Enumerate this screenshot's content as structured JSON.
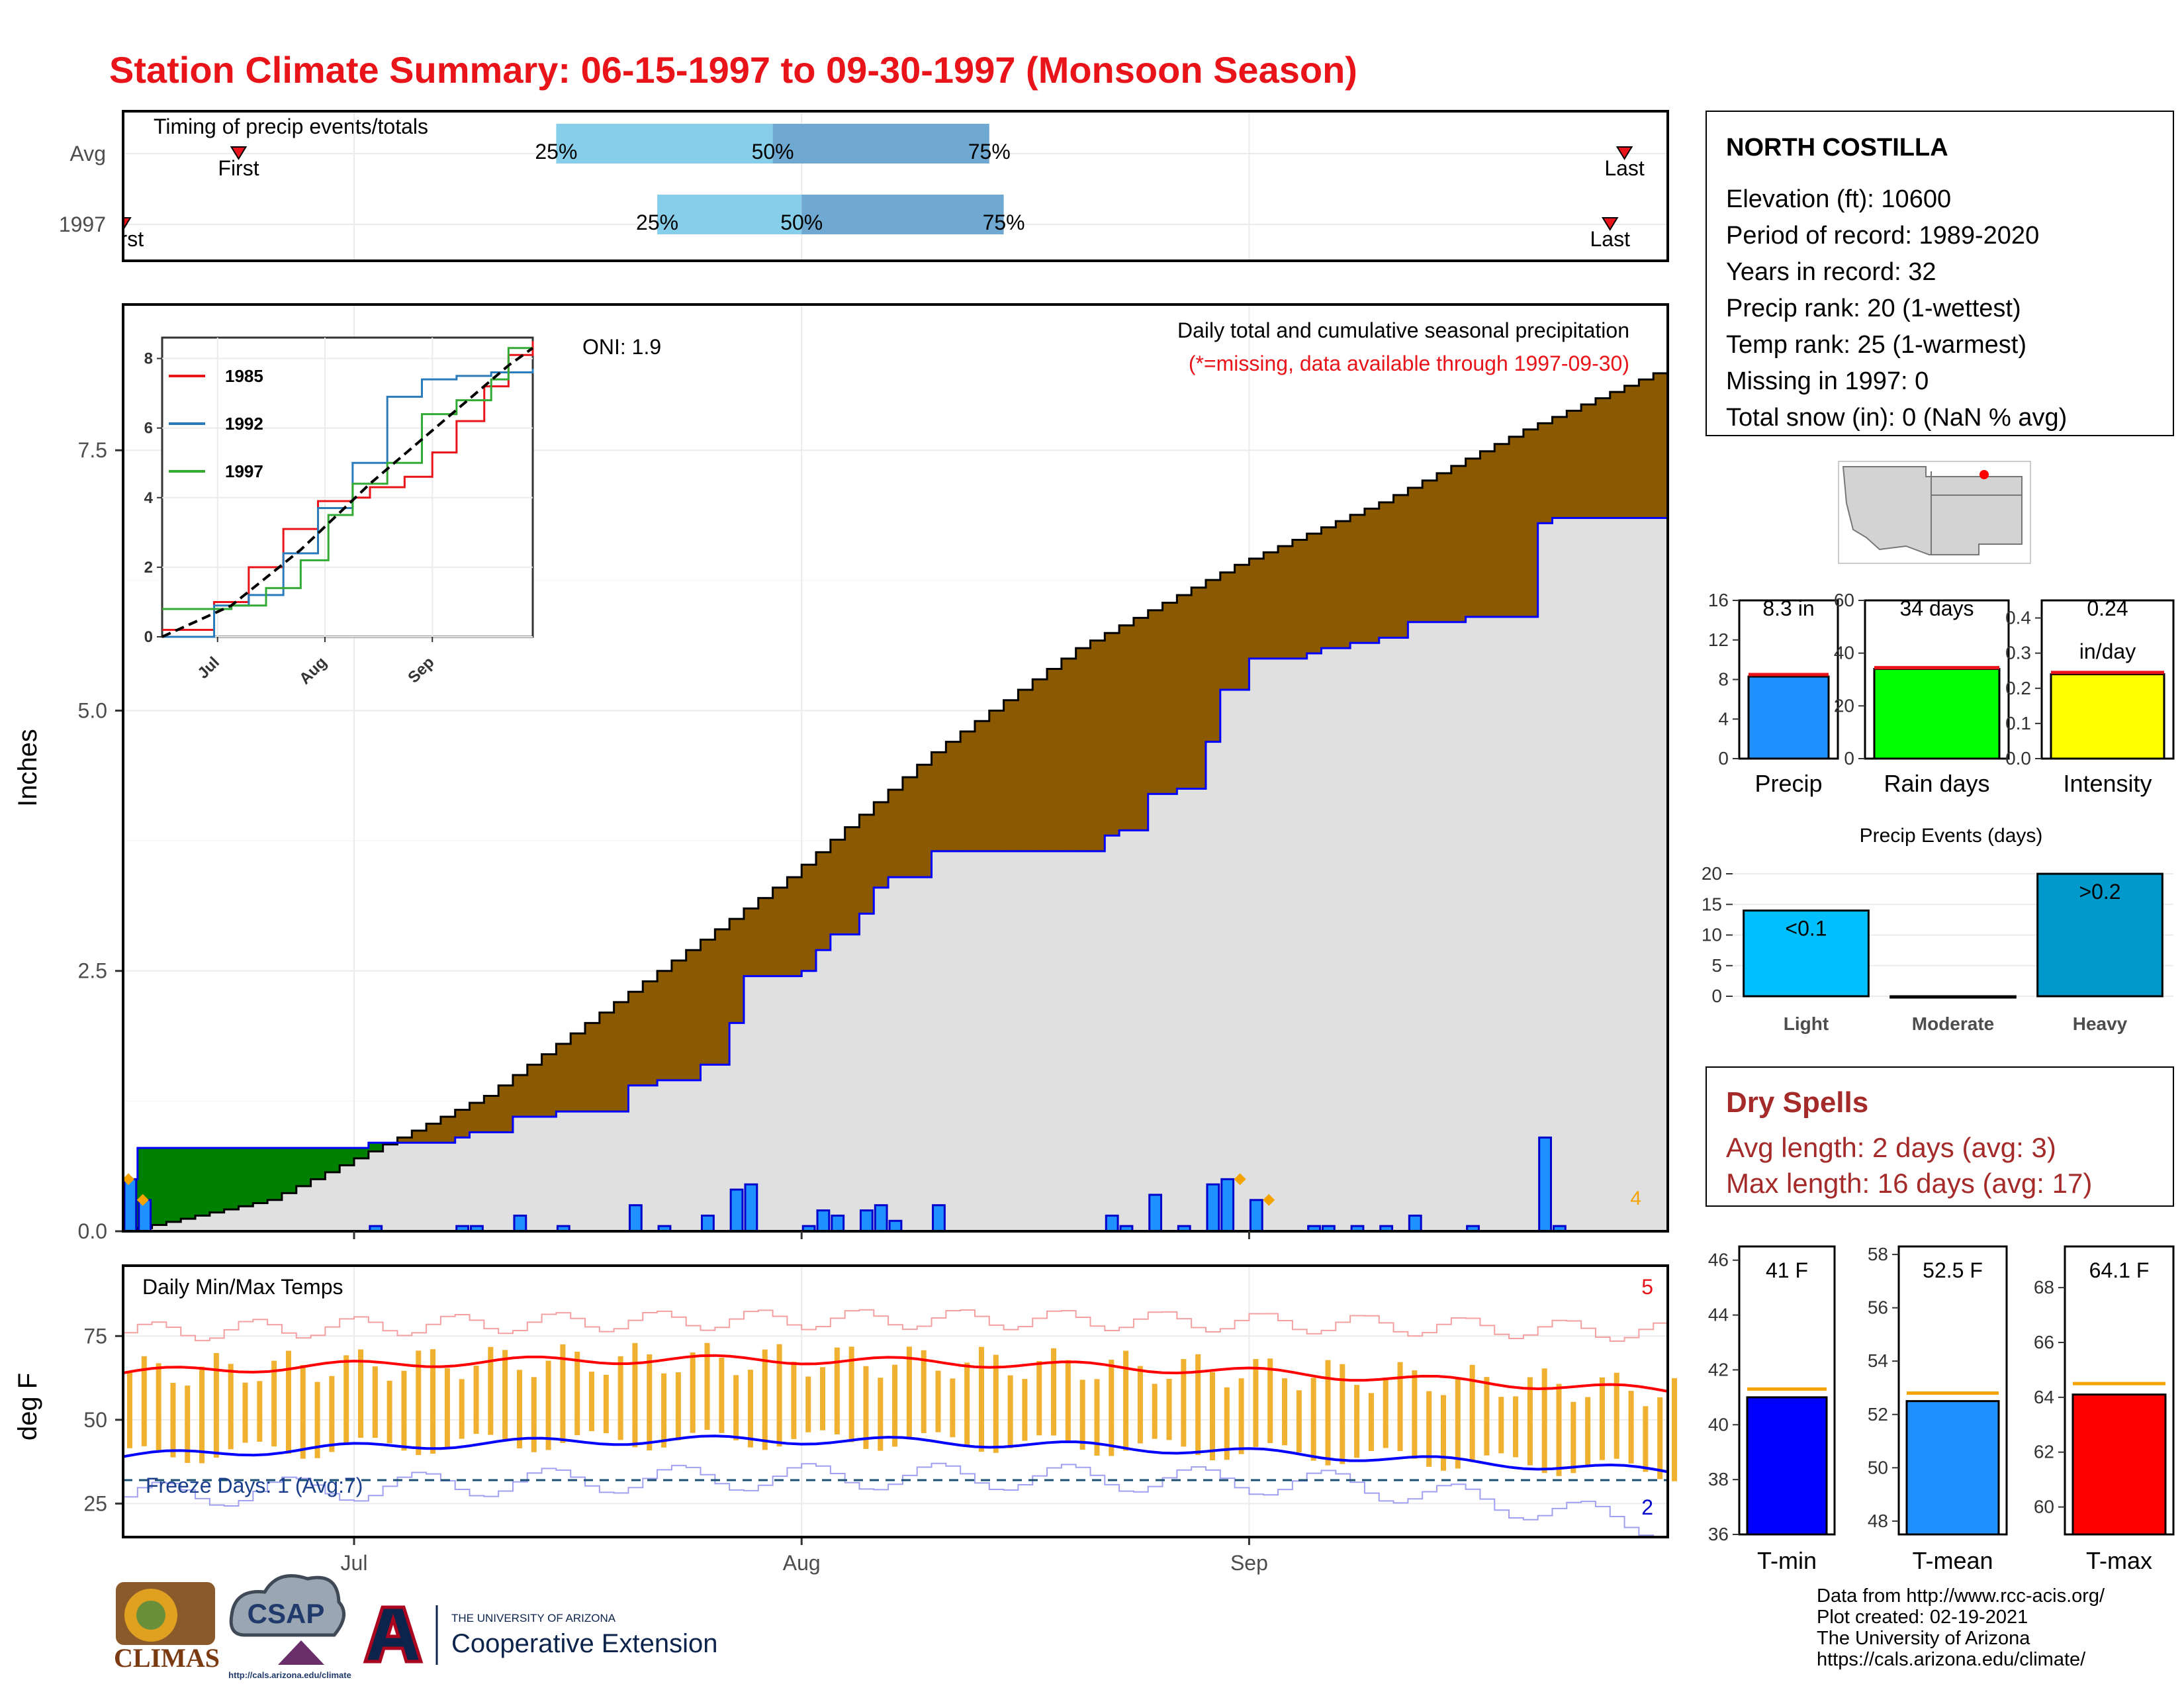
{
  "title": "Station Climate Summary: 06-15-1997 to 09-30-1997 (Monsoon Season)",
  "colors": {
    "title": "#e8141a",
    "precip_blue": "#1e90ff",
    "rain_green": "#00ff00",
    "intensity_yellow": "#ffff00",
    "light_blue": "#00bfff",
    "heavy_blue": "#0099cc",
    "tmin": "#0000ff",
    "tmean": "#1e90ff",
    "tmax": "#ff0000",
    "above": "#008000",
    "below": "#8b5a00",
    "cum_fill": "#e0e0e0",
    "orange": "#f4a300",
    "dry_red": "#a52a2a",
    "q_light": "#87ceeb",
    "q_dark": "#6fa8d0"
  },
  "timing": {
    "caption": "Timing of precip events/totals",
    "rows": [
      {
        "label": "Avg",
        "q25": "25%",
        "q50": "50%",
        "q75": "75%",
        "first": "First",
        "last": "Last"
      },
      {
        "label": "1997",
        "q25": "25%",
        "q50": "50%",
        "q75": "75%",
        "first": "First",
        "last": "Last"
      }
    ],
    "avg_dates": {
      "first": "06-23",
      "q25": "07-15",
      "q50": "07-30",
      "q75": "08-14",
      "last": "09-27"
    },
    "yr_dates": {
      "first": "06-15",
      "q25": "07-22",
      "q50": "08-01",
      "q75": "08-15",
      "last": "09-26"
    }
  },
  "main": {
    "ylabel": "Inches",
    "yticks": [
      "0.0",
      "2.5",
      "5.0",
      "7.5"
    ],
    "xticks": [
      "Jul",
      "Aug",
      "Sep"
    ],
    "oni": "ONI: 1.9",
    "desc": "Daily total and cumulative seasonal precipitation",
    "note": "(*=missing, data available through 1997-09-30)",
    "corner_count": "4"
  },
  "inset": {
    "legend": [
      "1985",
      "1992",
      "1997"
    ],
    "yticks": [
      "0",
      "2",
      "4",
      "6",
      "8"
    ],
    "xticks": [
      "Jul",
      "Aug",
      "Sep"
    ]
  },
  "temps": {
    "caption": "Daily Min/Max Temps",
    "ylabel": "deg F",
    "yticks": [
      "25",
      "50",
      "75"
    ],
    "freeze": "Freeze Days: 1 (Avg:7)",
    "count_max": "5",
    "count_min": "2",
    "freeze_line_f": 32
  },
  "station": {
    "name": "NORTH COSTILLA",
    "lines": [
      "Elevation (ft): 10600",
      "Period of record: 1989-2020",
      "Years in record: 32",
      "Precip rank: 20 (1-wettest)",
      "Temp rank: 25 (1-warmest)",
      "Missing in 1997: 0",
      "Total snow (in): 0 (NaN % avg)"
    ]
  },
  "summary_bars": [
    {
      "name": "Precip",
      "value": 8.3,
      "avg": 8.5,
      "label": "8.3 in",
      "yticks": [
        "0",
        "4",
        "8",
        "12",
        "16"
      ],
      "ymax": 16
    },
    {
      "name": "Rain days",
      "value": 34,
      "avg": 34.5,
      "label": "34 days",
      "yticks": [
        "0",
        "20",
        "40",
        "60"
      ],
      "ymax": 60
    },
    {
      "name": "Intensity",
      "value": 0.24,
      "avg": 0.245,
      "label": "0.24",
      "label2": "in/day",
      "yticks": [
        "0.0",
        "0.1",
        "0.2",
        "0.3",
        "0.4"
      ],
      "ymax": 0.45
    }
  ],
  "events": {
    "title": "Precip Events (days)",
    "categories": [
      "Light",
      "Moderate",
      "Heavy"
    ],
    "values": [
      14,
      0,
      20
    ],
    "labels": [
      "<0.1",
      "",
      ">0.2"
    ],
    "yticks": [
      "0",
      "5",
      "10",
      "15",
      "20"
    ],
    "ymax": 20
  },
  "dry": {
    "title": "Dry Spells",
    "avg": "Avg length: 2 days (avg: 3)",
    "max": "Max length: 16 days (avg: 17)"
  },
  "temp_bars": [
    {
      "name": "T-min",
      "value": 41,
      "avg": 41.3,
      "label": "41 F",
      "yticks": [
        "36",
        "38",
        "40",
        "42",
        "44",
        "46"
      ],
      "ymin": 36,
      "ymax": 46.5
    },
    {
      "name": "T-mean",
      "value": 52.5,
      "avg": 52.8,
      "label": "52.5 F",
      "yticks": [
        "48",
        "50",
        "52",
        "54",
        "56",
        "58"
      ],
      "ymin": 47.5,
      "ymax": 58.3
    },
    {
      "name": "T-max",
      "value": 64.1,
      "avg": 64.5,
      "label": "64.1 F",
      "yticks": [
        "60",
        "62",
        "64",
        "66",
        "68"
      ],
      "ymin": 59,
      "ymax": 69.5
    }
  ],
  "credits": [
    "Data from http://www.rcc-acis.org/",
    "Plot created: 02-19-2021",
    "The University of Arizona",
    "https://cals.arizona.edu/climate/"
  ],
  "logos": {
    "climas": "CLIMAS",
    "csap": "CSAP",
    "csap_url": "http://cals.arizona.edu/climate",
    "ua_small": "THE UNIVERSITY OF ARIZONA",
    "ua_big": "Cooperative Extension"
  },
  "chart_data": {
    "type": "area",
    "title": "Daily total and cumulative seasonal precipitation",
    "ylabel": "Inches",
    "ylim": [
      0,
      8.9
    ],
    "x_start": "1997-06-15",
    "x_end": "1997-09-30",
    "daily_precip_1997": [
      {
        "date": "1997-06-15",
        "in": 0.5
      },
      {
        "date": "1997-06-16",
        "in": 0.3
      },
      {
        "date": "1997-07-02",
        "in": 0.05
      },
      {
        "date": "1997-07-08",
        "in": 0.05
      },
      {
        "date": "1997-07-09",
        "in": 0.05
      },
      {
        "date": "1997-07-12",
        "in": 0.15
      },
      {
        "date": "1997-07-15",
        "in": 0.05
      },
      {
        "date": "1997-07-20",
        "in": 0.25
      },
      {
        "date": "1997-07-22",
        "in": 0.05
      },
      {
        "date": "1997-07-25",
        "in": 0.15
      },
      {
        "date": "1997-07-27",
        "in": 0.4
      },
      {
        "date": "1997-07-28",
        "in": 0.45
      },
      {
        "date": "1997-08-01",
        "in": 0.05
      },
      {
        "date": "1997-08-02",
        "in": 0.2
      },
      {
        "date": "1997-08-03",
        "in": 0.15
      },
      {
        "date": "1997-08-05",
        "in": 0.2
      },
      {
        "date": "1997-08-06",
        "in": 0.25
      },
      {
        "date": "1997-08-07",
        "in": 0.1
      },
      {
        "date": "1997-08-10",
        "in": 0.25
      },
      {
        "date": "1997-08-22",
        "in": 0.15
      },
      {
        "date": "1997-08-23",
        "in": 0.05
      },
      {
        "date": "1997-08-25",
        "in": 0.35
      },
      {
        "date": "1997-08-27",
        "in": 0.05
      },
      {
        "date": "1997-08-29",
        "in": 0.45
      },
      {
        "date": "1997-08-30",
        "in": 0.5
      },
      {
        "date": "1997-09-01",
        "in": 0.3
      },
      {
        "date": "1997-09-05",
        "in": 0.05
      },
      {
        "date": "1997-09-06",
        "in": 0.05
      },
      {
        "date": "1997-09-08",
        "in": 0.05
      },
      {
        "date": "1997-09-10",
        "in": 0.05
      },
      {
        "date": "1997-09-12",
        "in": 0.15
      },
      {
        "date": "1997-09-16",
        "in": 0.05
      },
      {
        "date": "1997-09-21",
        "in": 0.9
      },
      {
        "date": "1997-09-22",
        "in": 0.05
      }
    ],
    "cumulative_avg_points": [
      {
        "date": "1997-06-15",
        "in": 0.0
      },
      {
        "date": "1997-06-25",
        "in": 0.3
      },
      {
        "date": "1997-07-01",
        "in": 0.7
      },
      {
        "date": "1997-07-10",
        "in": 1.3
      },
      {
        "date": "1997-07-20",
        "in": 2.3
      },
      {
        "date": "1997-07-31",
        "in": 3.4
      },
      {
        "date": "1997-08-10",
        "in": 4.6
      },
      {
        "date": "1997-08-20",
        "in": 5.6
      },
      {
        "date": "1997-08-31",
        "in": 6.4
      },
      {
        "date": "1997-09-10",
        "in": 7.0
      },
      {
        "date": "1997-09-20",
        "in": 7.7
      },
      {
        "date": "1997-09-30",
        "in": 8.3
      }
    ],
    "inset": {
      "series": [
        {
          "name": "1985",
          "values": [
            [
              0,
              0.2
            ],
            [
              15,
              1.0
            ],
            [
              25,
              2.0
            ],
            [
              35,
              3.1
            ],
            [
              45,
              3.9
            ],
            [
              55,
              4.0
            ],
            [
              60,
              4.3
            ],
            [
              70,
              4.6
            ],
            [
              78,
              5.3
            ],
            [
              85,
              6.2
            ],
            [
              93,
              7.2
            ],
            [
              100,
              8.1
            ],
            [
              107,
              8.5
            ]
          ]
        },
        {
          "name": "1992",
          "values": [
            [
              0,
              0.0
            ],
            [
              15,
              0.9
            ],
            [
              25,
              1.2
            ],
            [
              35,
              2.4
            ],
            [
              45,
              3.7
            ],
            [
              55,
              5.0
            ],
            [
              65,
              6.9
            ],
            [
              75,
              7.4
            ],
            [
              85,
              7.5
            ],
            [
              95,
              7.6
            ],
            [
              107,
              7.7
            ]
          ]
        },
        {
          "name": "1997",
          "values": [
            [
              0,
              0.8
            ],
            [
              20,
              0.9
            ],
            [
              30,
              1.4
            ],
            [
              40,
              2.2
            ],
            [
              48,
              3.5
            ],
            [
              55,
              4.4
            ],
            [
              65,
              5.0
            ],
            [
              75,
              6.4
            ],
            [
              85,
              6.8
            ],
            [
              95,
              7.4
            ],
            [
              100,
              8.3
            ],
            [
              107,
              8.3
            ]
          ]
        }
      ],
      "avg": [
        [
          0,
          0
        ],
        [
          20,
          0.9
        ],
        [
          40,
          2.5
        ],
        [
          60,
          4.4
        ],
        [
          80,
          6.1
        ],
        [
          100,
          7.8
        ],
        [
          107,
          8.3
        ]
      ]
    }
  }
}
